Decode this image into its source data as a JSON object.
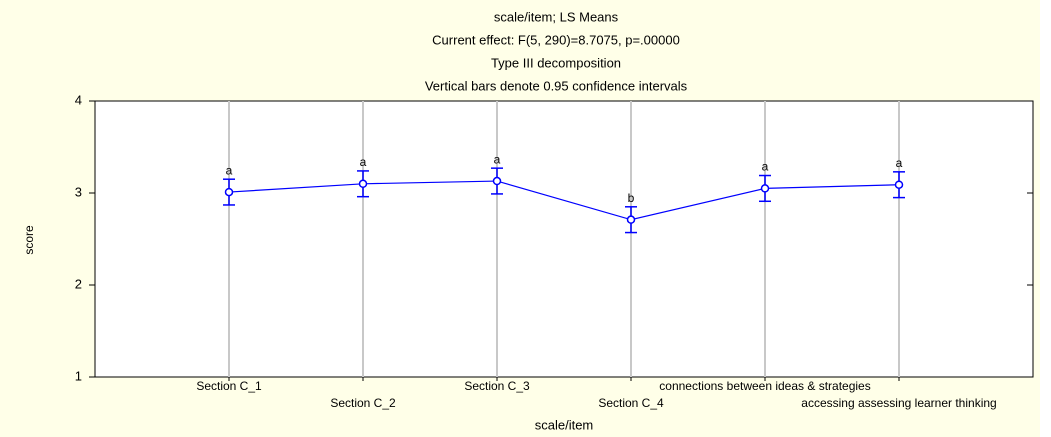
{
  "chart_data": {
    "type": "line",
    "title_lines": [
      "scale/item; LS Means",
      "Current effect: F(5, 290)=8.7075, p=.00000",
      "Type III decomposition",
      "Vertical bars denote 0.95 confidence intervals"
    ],
    "x_label": "scale/item",
    "y_label": "score",
    "categories": [
      "Section C_1",
      "Section C_2",
      "Section C_3",
      "Section C_4",
      "connections between ideas & strategies",
      "accessing assessing learner thinking"
    ],
    "series": [
      {
        "color": "#0000ff",
        "values": [
          3.01,
          3.1,
          3.13,
          2.71,
          3.05,
          3.09
        ],
        "errors": [
          0.14,
          0.14,
          0.14,
          0.14,
          0.14,
          0.14
        ]
      }
    ],
    "annotations": [
      "a",
      "a",
      "a",
      "b",
      "a",
      "a"
    ],
    "ylim": [
      1,
      4
    ],
    "yticks": [
      1,
      2,
      3,
      4
    ],
    "grid": true
  }
}
